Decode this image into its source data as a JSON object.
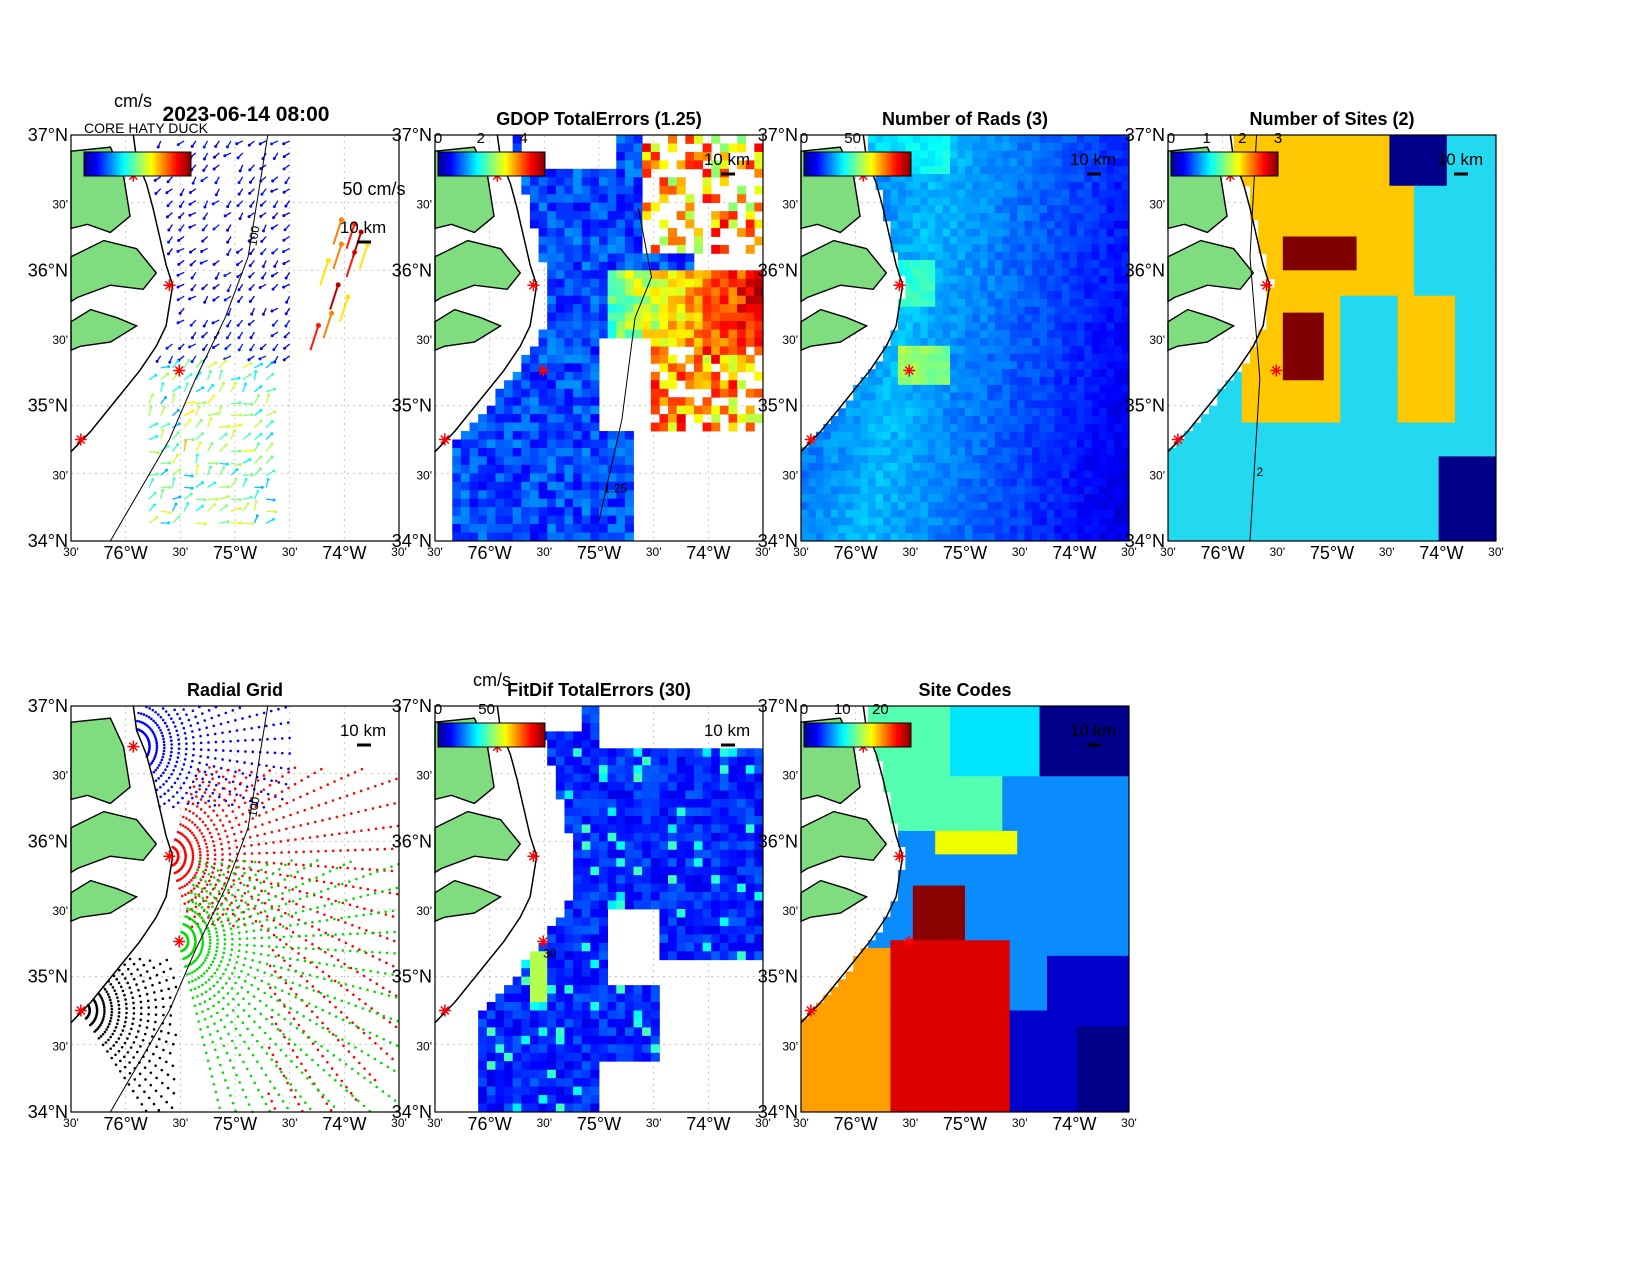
{
  "figure_title": "2023-06-14 08:00",
  "lat_labels": [
    "37°N",
    "30'",
    "36°N",
    "30'",
    "35°N",
    "30'",
    "34°N"
  ],
  "lon_labels": [
    "30'",
    "76°W",
    "30'",
    "75°W",
    "30'",
    "74°W",
    "30'"
  ],
  "scale_label": "10 km",
  "panels": {
    "currents": {
      "title": "",
      "colorbar_unit": "cm/s",
      "vector_scale_label": "50 cm/s",
      "contour_label": "100",
      "overlap_legend_text": "CORE HATY DUCK"
    },
    "gdop": {
      "title": "GDOP TotalErrors (1.25)",
      "colorbar_ticks": [
        "0",
        "2",
        "4"
      ],
      "contour_label": "1.25"
    },
    "nrads": {
      "title": "Number of Rads (3)",
      "colorbar_ticks": [
        "0",
        "50"
      ]
    },
    "nsites": {
      "title": "Number of Sites (2)",
      "colorbar_ticks": [
        "0",
        "1",
        "2",
        "3"
      ],
      "contour_label": "2"
    },
    "radial_grid": {
      "title": "Radial Grid",
      "contour_label": "100"
    },
    "fitdif": {
      "title": "FitDif TotalErrors (30)",
      "colorbar_unit": "cm/s",
      "colorbar_ticks": [
        "0",
        "50"
      ],
      "contour_label": "30"
    },
    "site_codes": {
      "title": "Site Codes",
      "colorbar_ticks": [
        "0",
        "10",
        "20"
      ]
    }
  },
  "colors": {
    "land": "#7fdd7f",
    "site_marker": "#ff0000",
    "radial_site_colors": [
      "#0000ff",
      "#ff0000",
      "#00dd00",
      "#000000"
    ],
    "nsites_colors": [
      "#00008b",
      "#22d9f0",
      "#ffc800",
      "#800000"
    ],
    "site_code_colors": [
      "#00008b",
      "#0000cd",
      "#0a8cff",
      "#00e5ff",
      "#55ffb0",
      "#f0ff00",
      "#ffa000",
      "#dd0000",
      "#8b0000"
    ]
  }
}
